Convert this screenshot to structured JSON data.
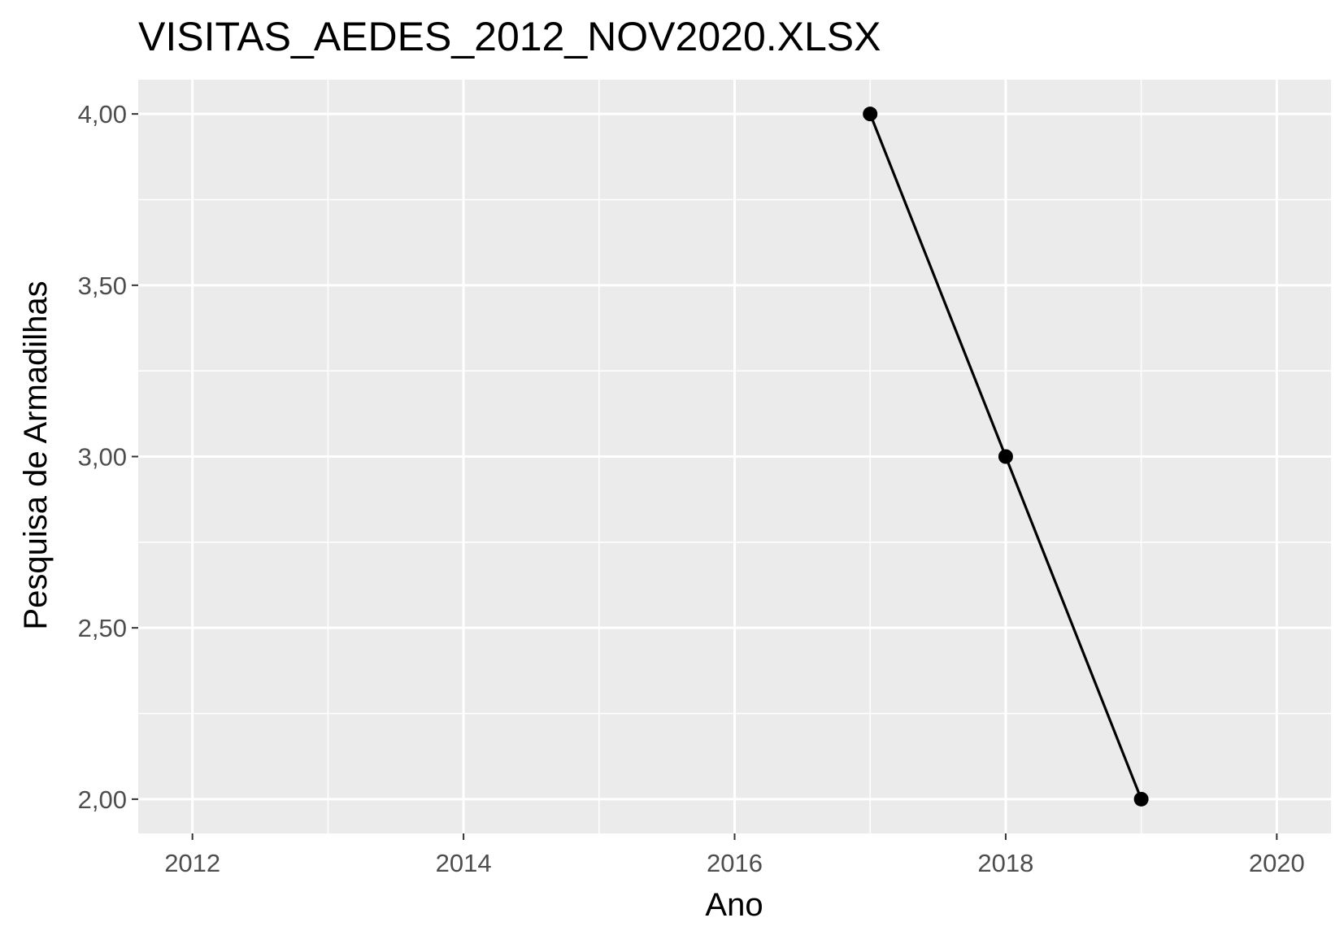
{
  "chart_data": {
    "type": "line",
    "title": "VISITAS_AEDES_2012_NOV2020.XLSX",
    "xlabel": "Ano",
    "ylabel": "Pesquisa de Armadilhas",
    "xlim": [
      2011.6,
      2020.4
    ],
    "ylim": [
      1.9,
      4.1
    ],
    "x_ticks": [
      2012,
      2014,
      2016,
      2018,
      2020
    ],
    "x_tick_labels": [
      "2012",
      "2014",
      "2016",
      "2018",
      "2020"
    ],
    "y_ticks": [
      2.0,
      2.5,
      3.0,
      3.5,
      4.0
    ],
    "y_tick_labels": [
      "2,00",
      "2,50",
      "3,00",
      "3,50",
      "4,00"
    ],
    "grid": true,
    "legend": "none",
    "colors": {
      "panel": "#EBEBEB",
      "grid": "#FFFFFF",
      "series": "#000000",
      "tick_text": "#4D4D4D",
      "text": "#000000"
    },
    "series": [
      {
        "x": [
          2017,
          2018,
          2019
        ],
        "y": [
          4.0,
          3.0,
          2.0
        ]
      }
    ]
  }
}
